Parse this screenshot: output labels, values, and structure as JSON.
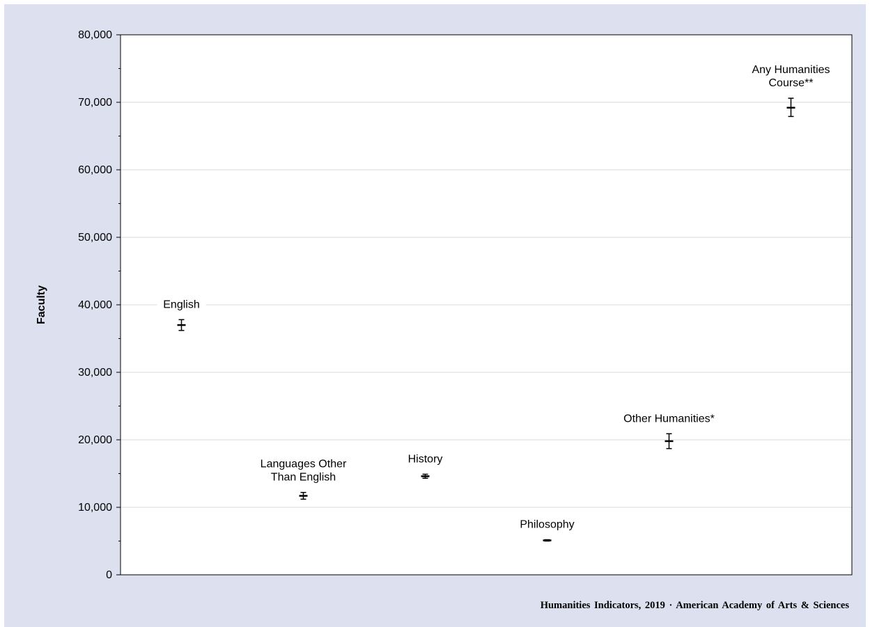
{
  "chart_data": {
    "type": "scatter",
    "xlabel": "",
    "ylabel": "Faculty",
    "ylim": [
      0,
      80000
    ],
    "yticks": [
      "0",
      "10,000",
      "20,000",
      "30,000",
      "40,000",
      "50,000",
      "60,000",
      "70,000",
      "80,000"
    ],
    "grid": true,
    "legend": "none",
    "points": [
      {
        "label": [
          "English"
        ],
        "value": 37000,
        "low": 36200,
        "high": 37800
      },
      {
        "label": [
          "Languages  Other",
          "Than  English"
        ],
        "value": 11700,
        "low": 11200,
        "high": 12200
      },
      {
        "label": [
          "History"
        ],
        "value": 14600,
        "low": 14300,
        "high": 14900
      },
      {
        "label": [
          "Philosophy"
        ],
        "value": 5100,
        "low": 5000,
        "high": 5200
      },
      {
        "label": [
          "Other Humanities*"
        ],
        "value": 19800,
        "low": 18700,
        "high": 20900
      },
      {
        "label": [
          "Any Humanities",
          "Course**"
        ],
        "value": 69200,
        "low": 67900,
        "high": 70600
      }
    ]
  },
  "source_note": "Humanities Indicators, 2019 · American Academy of Arts & Sciences",
  "colors": {
    "background": "#dde0ee",
    "plot_area": "#ffffff",
    "gridline": "#d9d9d9",
    "marker": "#000000"
  }
}
